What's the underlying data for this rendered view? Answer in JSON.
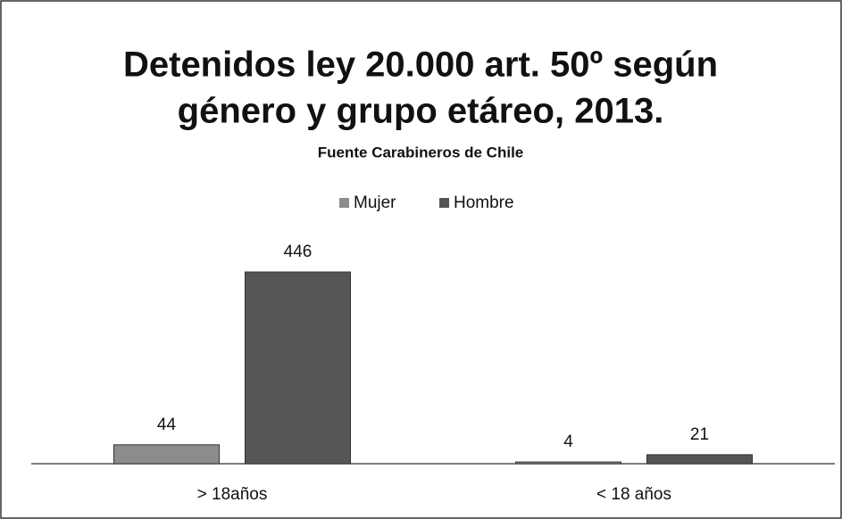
{
  "chart_data": {
    "type": "bar",
    "title": [
      "Detenidos ley 20.000 art. 50º según",
      "género y grupo etáreo, 2013."
    ],
    "subtitle": "Fuente Carabineros de Chile",
    "categories": [
      "> 18años",
      "< 18 años"
    ],
    "series": [
      {
        "name": "Mujer",
        "color": "#8c8c8c",
        "values": [
          44,
          4
        ]
      },
      {
        "name": "Hombre",
        "color": "#555555",
        "values": [
          446,
          21
        ]
      }
    ],
    "legend": "top"
  }
}
